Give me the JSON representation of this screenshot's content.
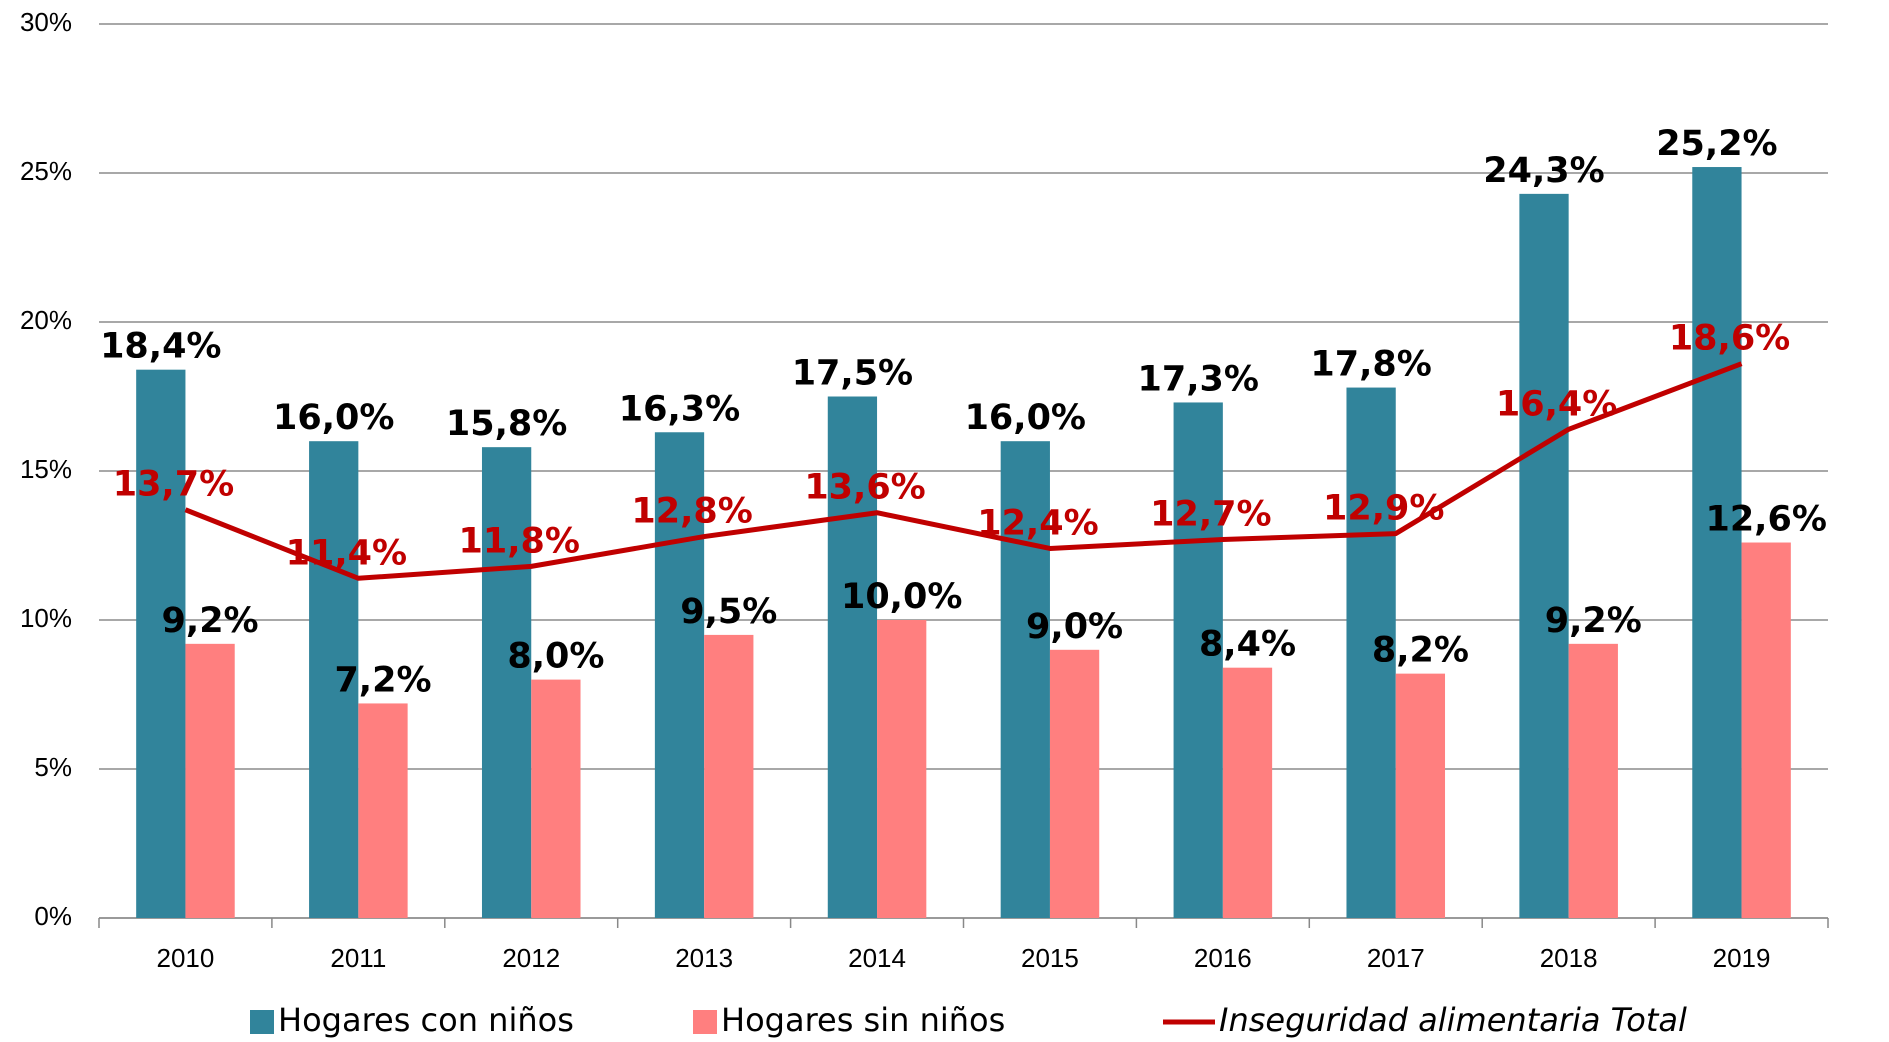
{
  "chart_data": {
    "type": "bar-line",
    "categories": [
      "2010",
      "2011",
      "2012",
      "2013",
      "2014",
      "2015",
      "2016",
      "2017",
      "2018",
      "2019"
    ],
    "series": [
      {
        "name": "Hogares con niños",
        "type": "bar",
        "color": "#31849b",
        "values": [
          18.4,
          16.0,
          15.8,
          16.3,
          17.5,
          16.0,
          17.3,
          17.8,
          24.3,
          25.2
        ],
        "value_labels": [
          "18,4%",
          "16,0%",
          "15,8%",
          "16,3%",
          "17,5%",
          "16,0%",
          "17,3%",
          "17,8%",
          "24,3%",
          "25,2%"
        ],
        "label_color": "#000000"
      },
      {
        "name": "Hogares sin niños",
        "type": "bar",
        "color": "#ff7f7f",
        "values": [
          9.2,
          7.2,
          8.0,
          9.5,
          10.0,
          9.0,
          8.4,
          8.2,
          9.2,
          12.6
        ],
        "value_labels": [
          "9,2%",
          "7,2%",
          "8,0%",
          "9,5%",
          "10,0%",
          "9,0%",
          "8,4%",
          "8,2%",
          "9,2%",
          "12,6%"
        ],
        "label_color": "#000000"
      },
      {
        "name": "Inseguridad alimentaria Total",
        "type": "line",
        "color": "#c00000",
        "values": [
          13.7,
          11.4,
          11.8,
          12.8,
          13.6,
          12.4,
          12.7,
          12.9,
          16.4,
          18.6
        ],
        "value_labels": [
          "13,7%",
          "11,4%",
          "11,8%",
          "12,8%",
          "13,6%",
          "12,4%",
          "12,7%",
          "12,9%",
          "16,4%",
          "18,6%"
        ],
        "label_color": "#c00000"
      }
    ],
    "ylim": [
      0,
      30
    ],
    "yticks": [
      {
        "value": 0,
        "label": "0%"
      },
      {
        "value": 5,
        "label": "5%"
      },
      {
        "value": 10,
        "label": "10%"
      },
      {
        "value": 15,
        "label": "15%"
      },
      {
        "value": 20,
        "label": "20%"
      },
      {
        "value": 25,
        "label": "25%"
      },
      {
        "value": 30,
        "label": "30%"
      }
    ],
    "grid": true,
    "legend": "bottom"
  }
}
